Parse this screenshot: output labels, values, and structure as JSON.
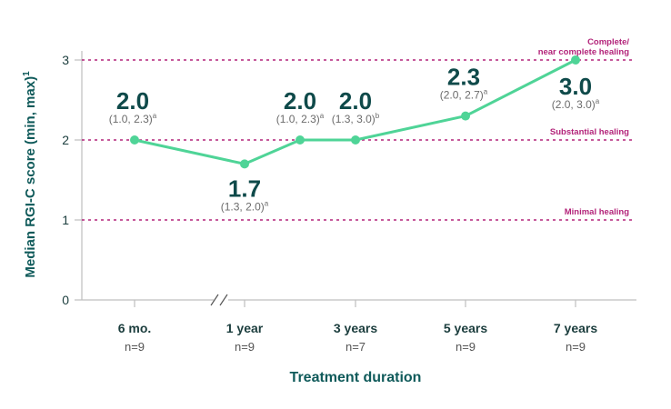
{
  "chart_data": {
    "type": "line",
    "xlabel": "Treatment duration",
    "ylabel": "Median RGI-C score (min, max)",
    "ylabel_sup": "1",
    "ylim": [
      0,
      3
    ],
    "yticks": [
      "0",
      "1",
      "2",
      "3"
    ],
    "grid": false,
    "axis_break_between": [
      "6 mo.",
      "1 year"
    ],
    "categories": [
      "6 mo.",
      "1 year",
      "3 years",
      "5 years",
      "7 years"
    ],
    "category_n": [
      "n=9",
      "n=9",
      "n=7",
      "n=9",
      "n=9"
    ],
    "series": [
      {
        "points": [
          {
            "x_index": 0,
            "value": 2.0,
            "label": "2.0",
            "range": "(1.0, 2.3)",
            "sup": "a"
          },
          {
            "x_index": 1,
            "value": 1.7,
            "label": "1.7",
            "range": "(1.3, 2.0)",
            "sup": "a"
          },
          {
            "x_index": 1.5,
            "value": 2.0,
            "label": "2.0",
            "range": "(1.0, 2.3)",
            "sup": "a"
          },
          {
            "x_index": 2,
            "value": 2.0,
            "label": "2.0",
            "range": "(1.3, 3.0)",
            "sup": "b"
          },
          {
            "x_index": 3,
            "value": 2.3,
            "label": "2.3",
            "range": "(2.0, 2.7)",
            "sup": "a"
          },
          {
            "x_index": 4,
            "value": 3.0,
            "label": "3.0",
            "range": "(2.0, 3.0)",
            "sup": "a"
          }
        ]
      }
    ],
    "reference_lines": [
      {
        "y": 3,
        "label_lines": [
          "Complete/",
          "near complete healing"
        ]
      },
      {
        "y": 2,
        "label_lines": [
          "Substantial healing"
        ]
      },
      {
        "y": 1,
        "label_lines": [
          "Minimal healing"
        ]
      }
    ]
  },
  "colors": {
    "line": "#4fd497",
    "reference": "#b3247a",
    "value_text": "#0f4a4a",
    "axis_title": "#0f5a5a",
    "axis": "#bfbfbf"
  }
}
